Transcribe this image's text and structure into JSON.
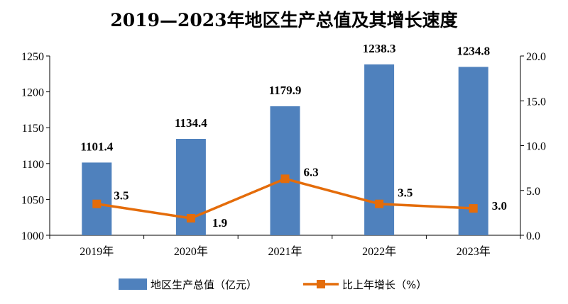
{
  "chart_data": {
    "type": "bar",
    "title": "2019—2023年地区生产总值及其增长速度",
    "categories": [
      "2019年",
      "2020年",
      "2021年",
      "2022年",
      "2023年"
    ],
    "series": [
      {
        "name": "地区生产总值（亿元）",
        "type": "bar",
        "axis": "left",
        "values": [
          1101.4,
          1134.4,
          1179.9,
          1238.3,
          1234.8
        ],
        "labels": [
          "1101.4",
          "1134.4",
          "1179.9",
          "1238.3",
          "1234.8"
        ],
        "color": "#4f81bd"
      },
      {
        "name": "比上年增长（%）",
        "type": "line",
        "axis": "right",
        "values": [
          3.5,
          1.9,
          6.3,
          3.5,
          3.0
        ],
        "labels": [
          "3.5",
          "1.9",
          "6.3",
          "3.5",
          "3.0"
        ],
        "color": "#e46c0a"
      }
    ],
    "y_left": {
      "min": 1000,
      "max": 1250,
      "ticks": [
        "1000",
        "1050",
        "1100",
        "1150",
        "1200",
        "1250"
      ]
    },
    "y_right": {
      "min": 0,
      "max": 20,
      "ticks": [
        "0.0",
        "5.0",
        "10.0",
        "15.0",
        "20.0"
      ]
    },
    "grid": false,
    "legend_position": "bottom"
  }
}
